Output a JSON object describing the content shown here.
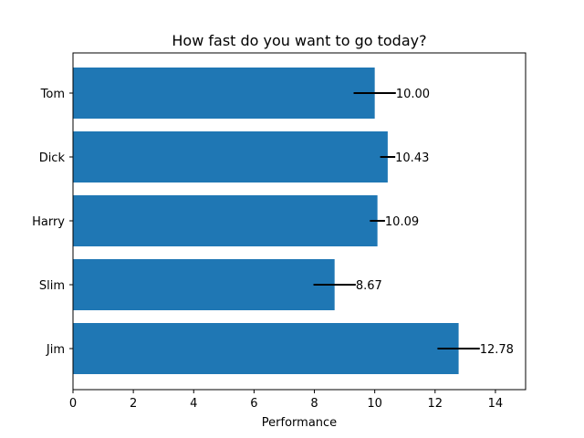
{
  "chart_data": {
    "type": "bar",
    "orientation": "horizontal",
    "title": "How fast do you want to go today?",
    "xlabel": "Performance",
    "ylabel": "",
    "categories": [
      "Tom",
      "Dick",
      "Harry",
      "Slim",
      "Jim"
    ],
    "values": [
      10.0,
      10.43,
      10.09,
      8.67,
      12.78
    ],
    "errors": [
      0.7,
      0.25,
      0.25,
      0.7,
      0.7
    ],
    "data_labels": [
      "10.00",
      "10.43",
      "10.09",
      "8.67",
      "12.78"
    ],
    "xlim": [
      0,
      15
    ],
    "xticks": [
      0,
      2,
      4,
      6,
      8,
      10,
      12,
      14
    ],
    "xtick_labels": [
      "0",
      "2",
      "4",
      "6",
      "8",
      "10",
      "12",
      "14"
    ],
    "grid": false,
    "legend": "none",
    "bar_color": "#1f77b4",
    "error_color": "#000000"
  }
}
